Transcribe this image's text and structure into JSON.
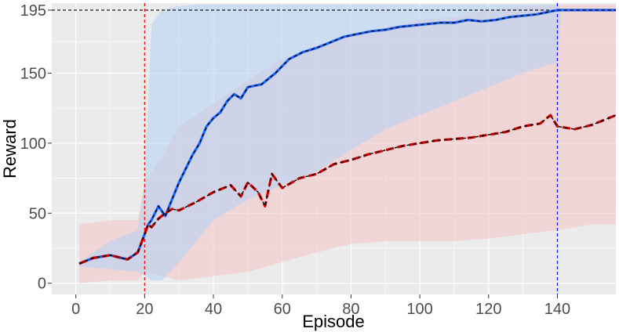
{
  "chart_data": {
    "type": "line",
    "xlabel": "Episode",
    "ylabel": "Reward",
    "xlim": [
      -7,
      157
    ],
    "ylim": [
      -8,
      200
    ],
    "x_ticks": [
      0,
      20,
      40,
      60,
      80,
      100,
      120,
      140
    ],
    "y_ticks": [
      0,
      50,
      100,
      150,
      195
    ],
    "grid": true,
    "colors": {
      "panel_background": "#ebebeb",
      "grid": "#ffffff",
      "blue_series": "#1a66ff",
      "red_series": "#cc0000",
      "mean_overlay": "#000000",
      "blue_band": "#b3d1f5",
      "red_band": "#f2c2c2"
    },
    "reference_lines": [
      {
        "axis": "y",
        "value": 195,
        "style": "dashed",
        "color": "#000000"
      },
      {
        "axis": "x",
        "value": 20,
        "style": "dashed",
        "color": "#ff0000"
      },
      {
        "axis": "x",
        "value": 140,
        "style": "dashed",
        "color": "#0000ff"
      }
    ],
    "series": [
      {
        "color": "#1a66ff",
        "style": "solid",
        "x": [
          1,
          5,
          10,
          15,
          18,
          20,
          21,
          22,
          24,
          26,
          28,
          30,
          32,
          34,
          36,
          38,
          40,
          42,
          44,
          46,
          48,
          50,
          54,
          58,
          62,
          66,
          70,
          74,
          78,
          82,
          86,
          90,
          94,
          98,
          102,
          106,
          110,
          114,
          118,
          122,
          126,
          130,
          134,
          138,
          140,
          145,
          150,
          157
        ],
        "y": [
          14,
          18,
          20,
          17,
          22,
          35,
          42,
          45,
          55,
          48,
          60,
          72,
          82,
          92,
          100,
          112,
          118,
          122,
          130,
          135,
          132,
          140,
          142,
          150,
          160,
          165,
          168,
          172,
          176,
          178,
          180,
          181,
          183,
          184,
          185,
          186,
          186,
          188,
          187,
          188,
          190,
          191,
          192,
          194,
          195,
          195,
          195,
          195
        ],
        "band": {
          "x": [
            1,
            10,
            18,
            20,
            22,
            25,
            30,
            35,
            40,
            50,
            60,
            70,
            80,
            90,
            100,
            110,
            120,
            130,
            140,
            141,
            150,
            157
          ],
          "upper": [
            15,
            30,
            38,
            72,
            185,
            195,
            198,
            199,
            199,
            199,
            199,
            199,
            199,
            199,
            199,
            199,
            199,
            199,
            199,
            195,
            195,
            195
          ],
          "lower": [
            12,
            10,
            8,
            5,
            2,
            2,
            15,
            30,
            45,
            60,
            70,
            80,
            95,
            110,
            120,
            130,
            140,
            150,
            158,
            195,
            195,
            195
          ]
        }
      },
      {
        "color": "#cc0000",
        "style": "dashed",
        "x": [
          1,
          5,
          10,
          15,
          18,
          20,
          21,
          22,
          24,
          26,
          28,
          30,
          35,
          40,
          45,
          48,
          50,
          53,
          55,
          57,
          60,
          65,
          70,
          75,
          80,
          85,
          90,
          95,
          100,
          105,
          110,
          115,
          120,
          125,
          130,
          135,
          138,
          140,
          145,
          150,
          155,
          157
        ],
        "y": [
          14,
          18,
          20,
          17,
          22,
          35,
          42,
          40,
          46,
          50,
          53,
          52,
          58,
          65,
          70,
          62,
          72,
          65,
          55,
          78,
          68,
          75,
          78,
          85,
          88,
          92,
          95,
          98,
          100,
          102,
          103,
          104,
          106,
          108,
          112,
          114,
          120,
          112,
          110,
          113,
          118,
          120
        ],
        "band": {
          "x": [
            1,
            10,
            18,
            20,
            25,
            30,
            40,
            50,
            60,
            70,
            80,
            90,
            100,
            110,
            120,
            130,
            140,
            150,
            157
          ],
          "upper": [
            42,
            45,
            45,
            72,
            90,
            112,
            128,
            145,
            160,
            170,
            178,
            182,
            188,
            190,
            195,
            198,
            199,
            199,
            199
          ],
          "lower": [
            0,
            2,
            2,
            8,
            5,
            2,
            5,
            8,
            15,
            22,
            28,
            30,
            30,
            30,
            32,
            35,
            38,
            42,
            42
          ]
        }
      }
    ]
  }
}
